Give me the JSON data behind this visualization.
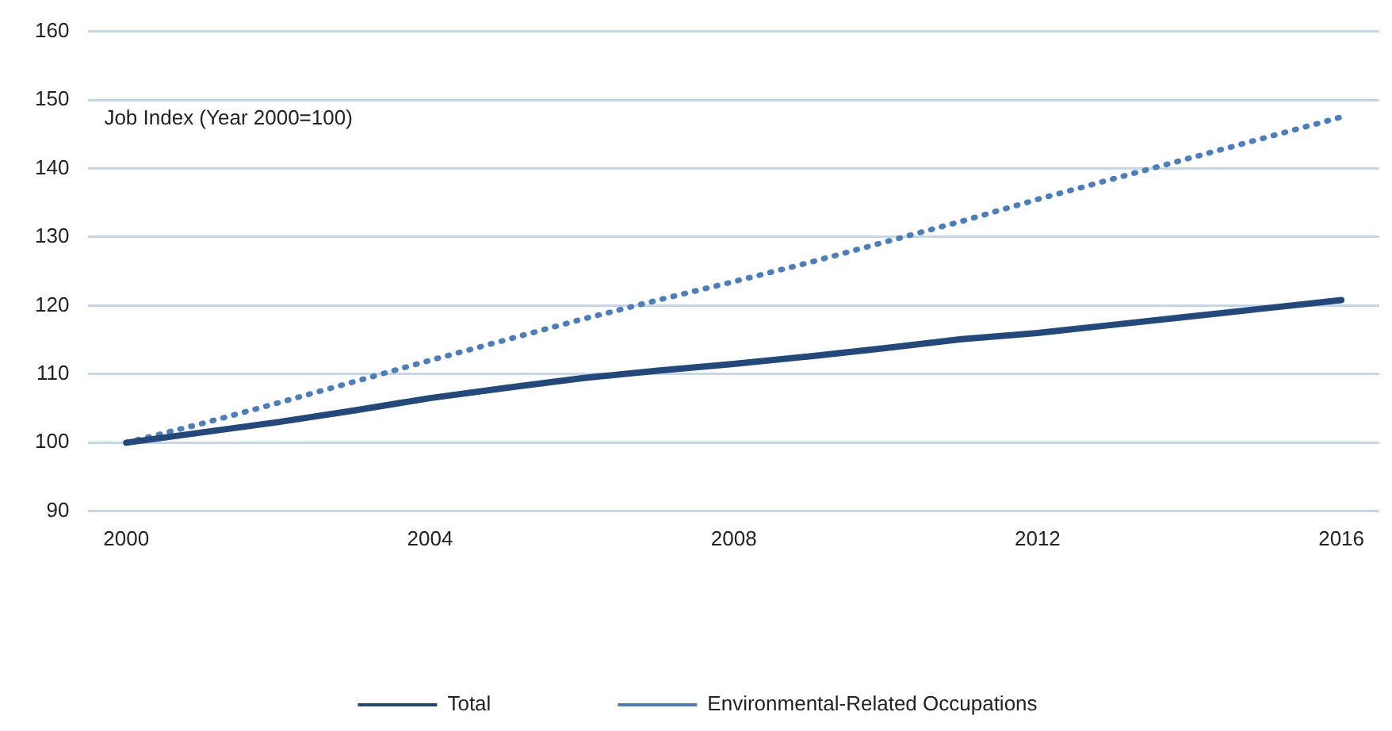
{
  "chart_data": {
    "type": "line",
    "x": [
      2000,
      2001,
      2002,
      2003,
      2004,
      2005,
      2006,
      2007,
      2008,
      2009,
      2010,
      2011,
      2012,
      2013,
      2014,
      2015,
      2016
    ],
    "series": [
      {
        "name": "Total",
        "color": "#23497c",
        "line_style": "solid",
        "values": [
          100,
          101.5,
          103,
          104.7,
          106.5,
          108,
          109.4,
          110.5,
          111.5,
          112.6,
          113.8,
          115.1,
          116,
          117.2,
          118.4,
          119.6,
          120.8
        ]
      },
      {
        "name": "Environmental-Related Occupations",
        "color": "#4a7ebf",
        "line_style": "dotted",
        "values": [
          100,
          102.8,
          105.8,
          108.9,
          112,
          115,
          118,
          120.8,
          123.5,
          126.3,
          129.3,
          132.3,
          135.5,
          138.5,
          141.5,
          144.5,
          147.5
        ]
      }
    ],
    "xlim": [
      1999.5,
      2016.5
    ],
    "xticks": [
      2000,
      2004,
      2008,
      2012,
      2016
    ],
    "ylim": [
      90,
      160
    ],
    "yticks": [
      90,
      100,
      110,
      120,
      130,
      140,
      150,
      160
    ],
    "grid": "y",
    "legend": "bottom",
    "marker": "none",
    "annotations": [
      "Job Index (Year 2000=100)"
    ]
  }
}
